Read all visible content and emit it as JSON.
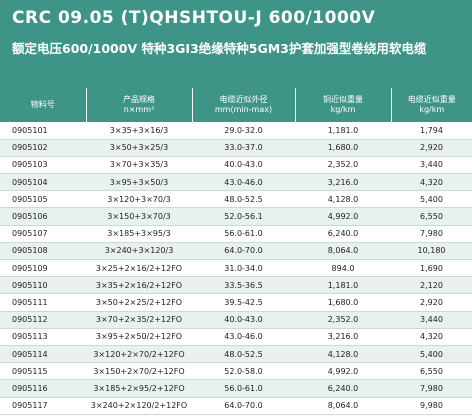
{
  "title_en": "CRC 09.05 (T)QHSHTOU-J  600/1000V",
  "title_cn": "额定电压600/1000V 特种3GI3绝缘特种5GM3护套加强型卷绕用软电缆",
  "headers": [
    {
      "l1": "物料号",
      "l2": ""
    },
    {
      "l1": "产品规格",
      "l2": "n×mm²"
    },
    {
      "l1": "电缆近似外径",
      "l2": "mm(min-max)"
    },
    {
      "l1": "铜近似重量",
      "l2": "kg/km"
    },
    {
      "l1": "电缆近似重量",
      "l2": "kg/km"
    }
  ],
  "rows": [
    [
      "0905101",
      "3×35+3×16/3",
      "29.0-32.0",
      "1,181.0",
      "1,794"
    ],
    [
      "0905102",
      "3×50+3×25/3",
      "33.0-37.0",
      "1,680.0",
      "2,920"
    ],
    [
      "0905103",
      "3×70+3×35/3",
      "40.0-43.0",
      "2,352.0",
      "3,440"
    ],
    [
      "0905104",
      "3×95+3×50/3",
      "43.0-46.0",
      "3,216.0",
      "4,320"
    ],
    [
      "0905105",
      "3×120+3×70/3",
      "48.0-52.5",
      "4,128.0",
      "5,400"
    ],
    [
      "0905106",
      "3×150+3×70/3",
      "52.0-56.1",
      "4,992.0",
      "6,550"
    ],
    [
      "0905107",
      "3×185+3×95/3",
      "56.0-61.0",
      "6,240.0",
      "7,980"
    ],
    [
      "0905108",
      "3×240+3×120/3",
      "64.0-70.0",
      "8,064.0",
      "10,180"
    ],
    [
      "0905109",
      "3×25+2×16/2+12FO",
      "31.0-34.0",
      "894.0",
      "1,690"
    ],
    [
      "0905110",
      "3×35+2×16/2+12FO",
      "33.5-36.5",
      "1,181.0",
      "2,120"
    ],
    [
      "0905111",
      "3×50+2×25/2+12FO",
      "39.5-42.5",
      "1,680.0",
      "2,920"
    ],
    [
      "0905112",
      "3×70+2×35/2+12FO",
      "40.0-43.0",
      "2,352.0",
      "3,440"
    ],
    [
      "0905113",
      "3×95+2×50/2+12FO",
      "43.0-46.0",
      "3,216.0",
      "4,320"
    ],
    [
      "0905114",
      "3×120+2×70/2+12FO",
      "48.0-52.5",
      "4,128.0",
      "5,400"
    ],
    [
      "0905115",
      "3×150+2×70/2+12FO",
      "52.0-58.0",
      "4,992.0",
      "6,550"
    ],
    [
      "0905116",
      "3×185+2×95/2+12FO",
      "56.0-61.0",
      "6,240.0",
      "7,980"
    ],
    [
      "0905117",
      "3×240+2×120/2+12FO",
      "64.0-70.0",
      "8,064.0",
      "9,980"
    ]
  ]
}
